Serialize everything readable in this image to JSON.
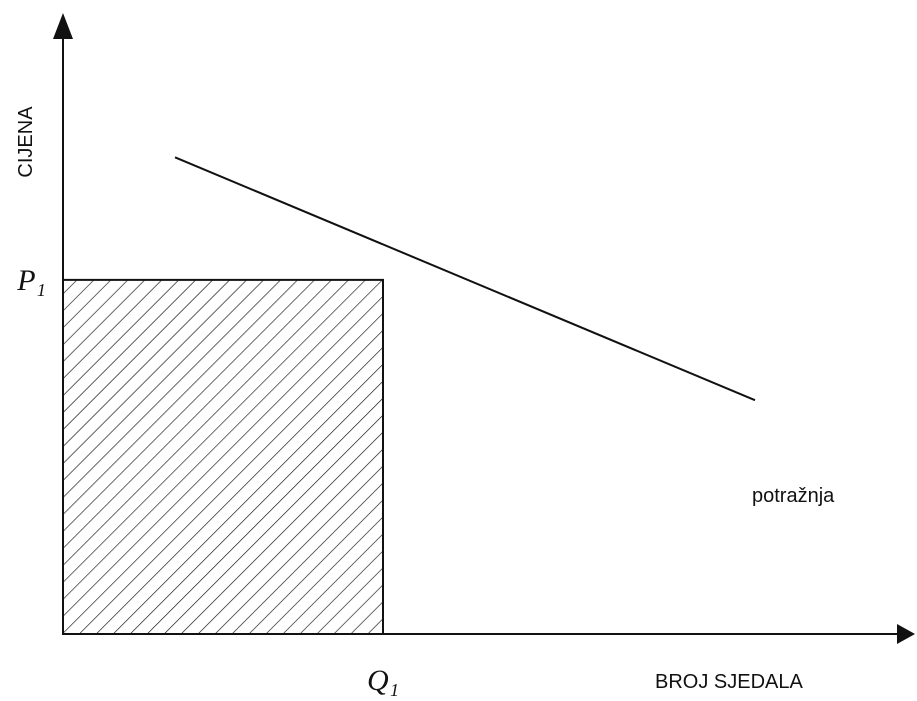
{
  "chart_data": {
    "type": "line",
    "xlabel": "BROJ SJEDALA",
    "ylabel": "CIJENA",
    "xlim": [
      0,
      10
    ],
    "ylim": [
      0,
      10
    ],
    "grid": false,
    "legend": "none",
    "x_ticks": [
      {
        "value": 4,
        "label": "Q₁"
      }
    ],
    "y_ticks": [
      {
        "value": 7.8,
        "label": "P₁"
      }
    ],
    "series": [
      {
        "name": "potražnja",
        "x": [
          1.4,
          8.65
        ],
        "y": [
          10.5,
          5.15
        ]
      }
    ],
    "shaded_region": {
      "x": [
        0,
        4
      ],
      "y": [
        0,
        7.8
      ],
      "pattern": "diagonal-hatch"
    }
  },
  "colors": {
    "line": "#111111",
    "background": "#ffffff"
  }
}
